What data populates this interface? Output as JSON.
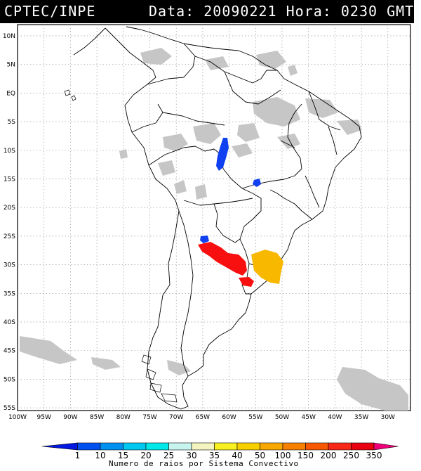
{
  "header": {
    "left": "CPTEC/INPE",
    "right": "Data: 20090221 Hora: 0230 GMT"
  },
  "map": {
    "lat_labels": [
      "10N",
      "5N",
      "EQ",
      "5S",
      "10S",
      "15S",
      "20S",
      "25S",
      "30S",
      "35S",
      "40S",
      "45S",
      "50S",
      "55S"
    ],
    "lon_labels": [
      "100W",
      "95W",
      "90W",
      "85W",
      "80W",
      "75W",
      "70W",
      "65W",
      "60W",
      "55W",
      "50W",
      "45W",
      "40W",
      "35W",
      "30W"
    ]
  },
  "legend": {
    "title": "Numero de raios por Sistema Convectivo",
    "labels": [
      "1",
      "10",
      "15",
      "20",
      "25",
      "30",
      "35",
      "40",
      "50",
      "100",
      "150",
      "200",
      "250",
      "350"
    ],
    "colors": [
      "#0018e0",
      "#0050f0",
      "#0090f0",
      "#00c8f0",
      "#00e8e8",
      "#c8f4f0",
      "#f4f4c0",
      "#f8f020",
      "#f8d000",
      "#f8a800",
      "#f88000",
      "#f85800",
      "#f82818",
      "#e80010",
      "#f00078"
    ]
  }
}
